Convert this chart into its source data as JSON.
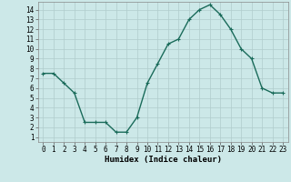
{
  "x": [
    0,
    1,
    2,
    3,
    4,
    5,
    6,
    7,
    8,
    9,
    10,
    11,
    12,
    13,
    14,
    15,
    16,
    17,
    18,
    19,
    20,
    21,
    22,
    23
  ],
  "y": [
    7.5,
    7.5,
    6.5,
    5.5,
    2.5,
    2.5,
    2.5,
    1.5,
    1.5,
    3.0,
    6.5,
    8.5,
    10.5,
    11.0,
    13.0,
    14.0,
    14.5,
    13.5,
    12.0,
    10.0,
    9.0,
    6.0,
    5.5,
    5.5
  ],
  "line_color": "#1a6b5a",
  "marker": "+",
  "marker_color": "#1a6b5a",
  "bg_color": "#cce8e8",
  "grid_color": "#b0cccc",
  "xlabel": "Humidex (Indice chaleur)",
  "xlim": [
    -0.5,
    23.5
  ],
  "ylim": [
    0.5,
    14.8
  ],
  "yticks": [
    1,
    2,
    3,
    4,
    5,
    6,
    7,
    8,
    9,
    10,
    11,
    12,
    13,
    14
  ],
  "xticks": [
    0,
    1,
    2,
    3,
    4,
    5,
    6,
    7,
    8,
    9,
    10,
    11,
    12,
    13,
    14,
    15,
    16,
    17,
    18,
    19,
    20,
    21,
    22,
    23
  ],
  "tick_fontsize": 5.5,
  "label_fontsize": 6.5,
  "linewidth": 1.0,
  "markersize": 3.5,
  "fig_width": 3.2,
  "fig_height": 2.0,
  "dpi": 100
}
